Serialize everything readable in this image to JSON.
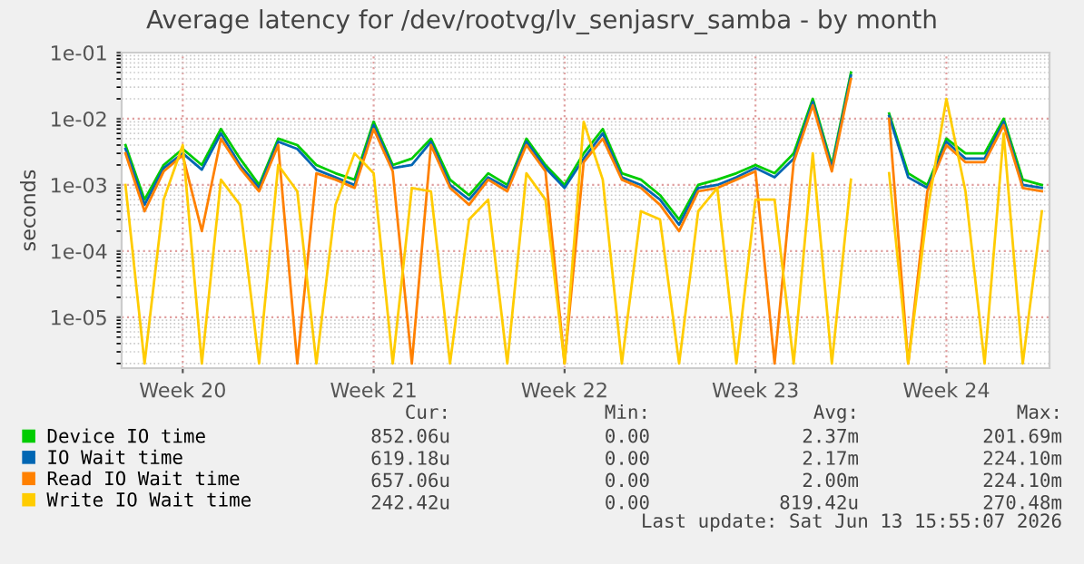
{
  "chart_data": {
    "type": "line",
    "title": "Average latency for /dev/rootvg/lv_senjasrv_samba - by month",
    "ylabel": "seconds",
    "categories": [
      null,
      null,
      null,
      "Week 20",
      null,
      null,
      null,
      null,
      null,
      null,
      null,
      null,
      null,
      "Week 21",
      null,
      null,
      null,
      null,
      null,
      null,
      null,
      null,
      null,
      "Week 22",
      null,
      null,
      null,
      null,
      null,
      null,
      null,
      null,
      null,
      "Week 23",
      null,
      null,
      null,
      null,
      null,
      null,
      null,
      null,
      null,
      "Week 24",
      null,
      null,
      null,
      null,
      null
    ],
    "series": [
      {
        "name": "Device IO time",
        "color": "#00cc00",
        "values": [
          0.004,
          0.0006,
          0.002,
          0.0035,
          0.002,
          0.007,
          0.0025,
          0.001,
          0.005,
          0.004,
          0.002,
          0.0015,
          0.0012,
          0.009,
          0.002,
          0.0025,
          0.005,
          0.0012,
          0.0007,
          0.0015,
          0.001,
          0.005,
          0.002,
          0.001,
          0.003,
          0.007,
          0.0015,
          0.0012,
          0.0007,
          0.0003,
          0.001,
          0.0012,
          0.0015,
          0.002,
          0.0015,
          0.003,
          0.02,
          0.002,
          0.05,
          null,
          0.012,
          0.0015,
          0.001,
          0.005,
          0.003,
          0.003,
          0.01,
          0.0012,
          0.001
        ]
      },
      {
        "name": "IO Wait time",
        "color": "#0066b3",
        "values": [
          0.0035,
          0.0005,
          0.0018,
          0.003,
          0.0017,
          0.006,
          0.002,
          0.0009,
          0.0045,
          0.0035,
          0.0017,
          0.0013,
          0.001,
          0.008,
          0.0018,
          0.002,
          0.0045,
          0.001,
          0.0006,
          0.0013,
          0.0009,
          0.0045,
          0.0018,
          0.0009,
          0.0025,
          0.006,
          0.0013,
          0.001,
          0.0006,
          0.00025,
          0.0009,
          0.001,
          0.0013,
          0.0018,
          0.0013,
          0.0025,
          0.018,
          0.0018,
          0.045,
          null,
          0.011,
          0.0013,
          0.0009,
          0.0045,
          0.0025,
          0.0025,
          0.009,
          0.001,
          0.0009
        ]
      },
      {
        "name": "Read IO Wait time",
        "color": "#ff8000",
        "values": [
          0.003,
          0.0004,
          0.0016,
          0.0028,
          0.0002,
          0.005,
          0.0018,
          0.0008,
          0.004,
          2e-06,
          0.0015,
          0.0012,
          0.0009,
          0.007,
          0.0016,
          2e-06,
          0.004,
          0.0009,
          0.0005,
          0.0012,
          0.0008,
          0.004,
          0.0016,
          2e-06,
          0.0022,
          0.005,
          0.0012,
          0.0009,
          0.0005,
          0.0002,
          0.0008,
          0.0009,
          0.0012,
          0.0016,
          2e-06,
          0.0022,
          0.016,
          0.0016,
          0.04,
          null,
          0.01,
          2e-06,
          0.0008,
          0.004,
          0.0022,
          0.0022,
          0.008,
          0.0009,
          0.0008
        ]
      },
      {
        "name": "Write IO Wait time",
        "color": "#ffcc00",
        "values": [
          0.001,
          2e-06,
          0.0006,
          0.004,
          2e-06,
          0.0012,
          0.0005,
          2e-06,
          0.002,
          0.0008,
          2e-06,
          0.0005,
          0.003,
          0.0015,
          2e-06,
          0.0009,
          0.0008,
          2e-06,
          0.0003,
          0.0006,
          2e-06,
          0.0015,
          0.0006,
          2e-06,
          0.009,
          0.0012,
          2e-06,
          0.0004,
          0.0003,
          2e-06,
          0.0004,
          0.0009,
          2e-06,
          0.0006,
          0.0006,
          2e-06,
          0.003,
          2e-06,
          0.0012,
          null,
          0.0015,
          2e-06,
          0.0004,
          0.02,
          0.0008,
          2e-06,
          0.006,
          2e-06,
          0.0004
        ]
      }
    ],
    "log": "y",
    "ylim": [
      1.7e-06,
      0.1
    ],
    "yticks": [
      {
        "value": 0.1,
        "label": "1e-01"
      },
      {
        "value": 0.01,
        "label": "1e-02"
      },
      {
        "value": 0.001,
        "label": "1e-03"
      },
      {
        "value": 0.0001,
        "label": "1e-04"
      },
      {
        "value": 1e-05,
        "label": "1e-05"
      }
    ],
    "grid": true,
    "legend": "bottom",
    "line_style": "solid",
    "annotations": [
      "Cur:",
      "Min:",
      "Avg:",
      "Max:",
      "852.06u",
      "0.00",
      "2.37m",
      "201.69m",
      "619.18u",
      "0.00",
      "2.17m",
      "224.10m",
      "657.06u",
      "0.00",
      "2.00m",
      "224.10m",
      "242.42u",
      "0.00",
      "819.42u",
      "270.48m",
      "Last update: Sat Jun 13 15:55:07 2026"
    ]
  }
}
